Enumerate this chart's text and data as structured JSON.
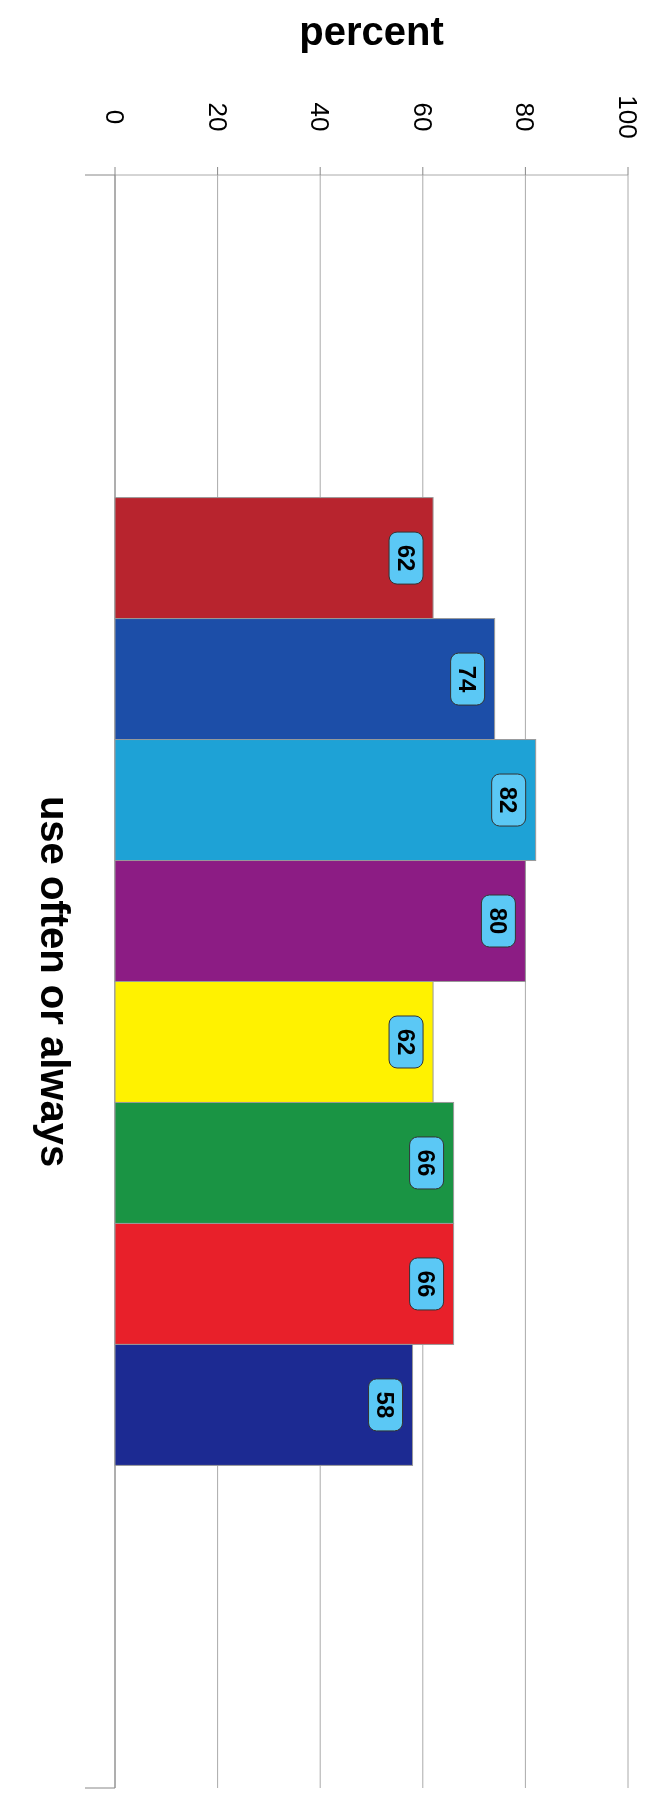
{
  "chart_data": {
    "type": "bar",
    "orientation": "horizontal",
    "xlabel": "percent",
    "categories": [
      "use often or always"
    ],
    "series": [
      {
        "color": "#b8242e",
        "values": [
          62
        ]
      },
      {
        "color": "#1c4ea8",
        "values": [
          74
        ]
      },
      {
        "color": "#1ea2d6",
        "values": [
          82
        ]
      },
      {
        "color": "#8c1c84",
        "values": [
          80
        ]
      },
      {
        "color": "#fff200",
        "values": [
          62
        ]
      },
      {
        "color": "#1a9444",
        "values": [
          66
        ]
      },
      {
        "color": "#e8202a",
        "values": [
          66
        ]
      },
      {
        "color": "#1c2a92",
        "values": [
          58
        ]
      }
    ],
    "xlim": [
      0,
      100
    ],
    "xticks": [
      0,
      20,
      40,
      60,
      80,
      100
    ],
    "grid": "x",
    "data_labels": true
  }
}
